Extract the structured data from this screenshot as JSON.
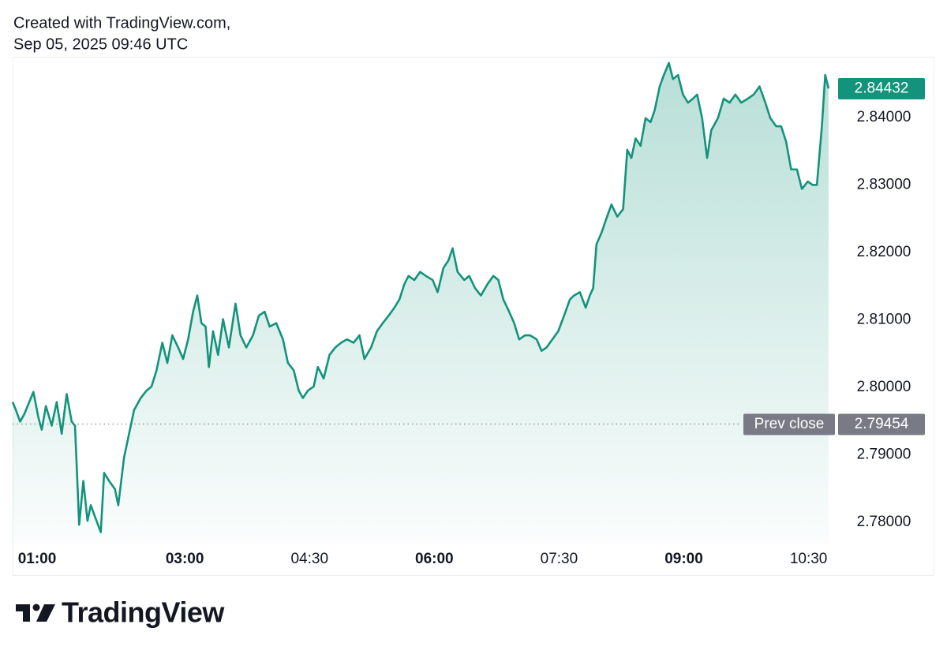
{
  "chart_data": {
    "type": "area",
    "title": "Created with TradingView.com,",
    "subtitle": "Sep 05, 2025 09:46 UTC",
    "brand": "TradingView",
    "color": "#13937b",
    "grid": false,
    "xlim": [
      0.93,
      10.76
    ],
    "ylim": [
      2.7767,
      2.849
    ],
    "xticks": [
      {
        "value": 1,
        "label": "01:00"
      },
      {
        "value": 3,
        "label": "03:00"
      },
      {
        "value": 4.5,
        "label": "04:30"
      },
      {
        "value": 6,
        "label": "06:00"
      },
      {
        "value": 7.5,
        "label": "07:30"
      },
      {
        "value": 9,
        "label": "09:00"
      },
      {
        "value": 10.5,
        "label": "10:30"
      }
    ],
    "yticks": [
      {
        "value": 2.78,
        "label": "2.78000"
      },
      {
        "value": 2.79,
        "label": "2.79000"
      },
      {
        "value": 2.8,
        "label": "2.80000"
      },
      {
        "value": 2.81,
        "label": "2.81000"
      },
      {
        "value": 2.82,
        "label": "2.82000"
      },
      {
        "value": 2.83,
        "label": "2.83000"
      },
      {
        "value": 2.84,
        "label": "2.84000"
      }
    ],
    "last_price": {
      "value": 2.84432,
      "label": "2.84432"
    },
    "prev_close": {
      "name": "Prev close",
      "value": 2.79454,
      "label": "2.79454"
    },
    "x": [
      0.93,
      0.97,
      1.02,
      1.07,
      1.11,
      1.18,
      1.24,
      1.28,
      1.33,
      1.4,
      1.46,
      1.52,
      1.58,
      1.64,
      1.68,
      1.73,
      1.78,
      1.83,
      1.87,
      1.92,
      1.99,
      2.03,
      2.09,
      2.16,
      2.2,
      2.27,
      2.33,
      2.39,
      2.47,
      2.54,
      2.6,
      2.66,
      2.73,
      2.79,
      2.85,
      2.92,
      2.98,
      3.04,
      3.1,
      3.15,
      3.2,
      3.25,
      3.29,
      3.34,
      3.4,
      3.46,
      3.53,
      3.61,
      3.67,
      3.74,
      3.82,
      3.89,
      3.96,
      4.02,
      4.1,
      4.18,
      4.24,
      4.31,
      4.37,
      4.42,
      4.48,
      4.55,
      4.6,
      4.67,
      4.74,
      4.81,
      4.88,
      4.95,
      5.03,
      5.1,
      5.16,
      5.24,
      5.31,
      5.38,
      5.45,
      5.52,
      5.58,
      5.64,
      5.69,
      5.76,
      5.83,
      5.9,
      5.98,
      6.04,
      6.11,
      6.17,
      6.22,
      6.28,
      6.36,
      6.42,
      6.49,
      6.56,
      6.64,
      6.71,
      6.77,
      6.83,
      6.9,
      6.96,
      7.02,
      7.09,
      7.15,
      7.23,
      7.29,
      7.35,
      7.42,
      7.49,
      7.56,
      7.63,
      7.68,
      7.75,
      7.82,
      7.87,
      7.91,
      7.95,
      8.01,
      8.06,
      8.13,
      8.2,
      8.27,
      8.32,
      8.37,
      8.42,
      8.48,
      8.54,
      8.6,
      8.65,
      8.71,
      8.76,
      8.82,
      8.87,
      8.93,
      8.99,
      9.05,
      9.11,
      9.16,
      9.22,
      9.28,
      9.33,
      9.41,
      9.48,
      9.55,
      9.62,
      9.69,
      9.77,
      9.84,
      9.91,
      9.98,
      10.04,
      10.11,
      10.17,
      10.23,
      10.29,
      10.36,
      10.42,
      10.49,
      10.55,
      10.6,
      10.66,
      10.7,
      10.74
    ],
    "values": [
      2.7978,
      2.7966,
      2.7949,
      2.796,
      2.7972,
      2.7993,
      2.7955,
      2.7937,
      2.7972,
      2.7943,
      2.7978,
      2.7931,
      2.799,
      2.7949,
      2.7943,
      2.7796,
      2.7861,
      2.7802,
      2.7825,
      2.7808,
      2.7785,
      2.7873,
      2.7861,
      2.7849,
      2.7825,
      2.7896,
      2.7931,
      2.7966,
      2.7984,
      2.7995,
      2.8001,
      2.8025,
      2.8066,
      2.8036,
      2.8077,
      2.8059,
      2.8042,
      2.8071,
      2.8112,
      2.8136,
      2.8095,
      2.809,
      2.803,
      2.8083,
      2.8048,
      2.8101,
      2.8059,
      2.8124,
      2.8077,
      2.8059,
      2.8077,
      2.8106,
      2.8112,
      2.809,
      2.8095,
      2.8071,
      2.8036,
      2.8025,
      2.7995,
      2.7984,
      2.7995,
      2.8001,
      2.803,
      2.8013,
      2.8048,
      2.8059,
      2.8066,
      2.8071,
      2.8066,
      2.8077,
      2.8042,
      2.8059,
      2.8083,
      2.8095,
      2.8106,
      2.8118,
      2.813,
      2.8153,
      2.8165,
      2.8159,
      2.8171,
      2.8165,
      2.8159,
      2.8141,
      2.8177,
      2.8188,
      2.8206,
      2.8171,
      2.8159,
      2.8165,
      2.8147,
      2.8136,
      2.8153,
      2.8165,
      2.8159,
      2.813,
      2.8112,
      2.8095,
      2.8071,
      2.8077,
      2.8077,
      2.8071,
      2.8054,
      2.8059,
      2.8071,
      2.8083,
      2.8106,
      2.813,
      2.8136,
      2.8141,
      2.8118,
      2.8136,
      2.8147,
      2.8212,
      2.8229,
      2.8247,
      2.8271,
      2.8253,
      2.8264,
      2.8352,
      2.834,
      2.8369,
      2.8358,
      2.8399,
      2.8393,
      2.8411,
      2.8446,
      2.8463,
      2.8481,
      2.8457,
      2.8463,
      2.8434,
      2.8422,
      2.8428,
      2.8434,
      2.8399,
      2.834,
      2.8381,
      2.8399,
      2.8428,
      2.8422,
      2.8434,
      2.8422,
      2.8428,
      2.8434,
      2.8446,
      2.8422,
      2.8399,
      2.8387,
      2.8387,
      2.8364,
      2.8323,
      2.8323,
      2.8294,
      2.8305,
      2.83,
      2.83,
      2.8387,
      2.8463,
      2.8443
    ]
  }
}
